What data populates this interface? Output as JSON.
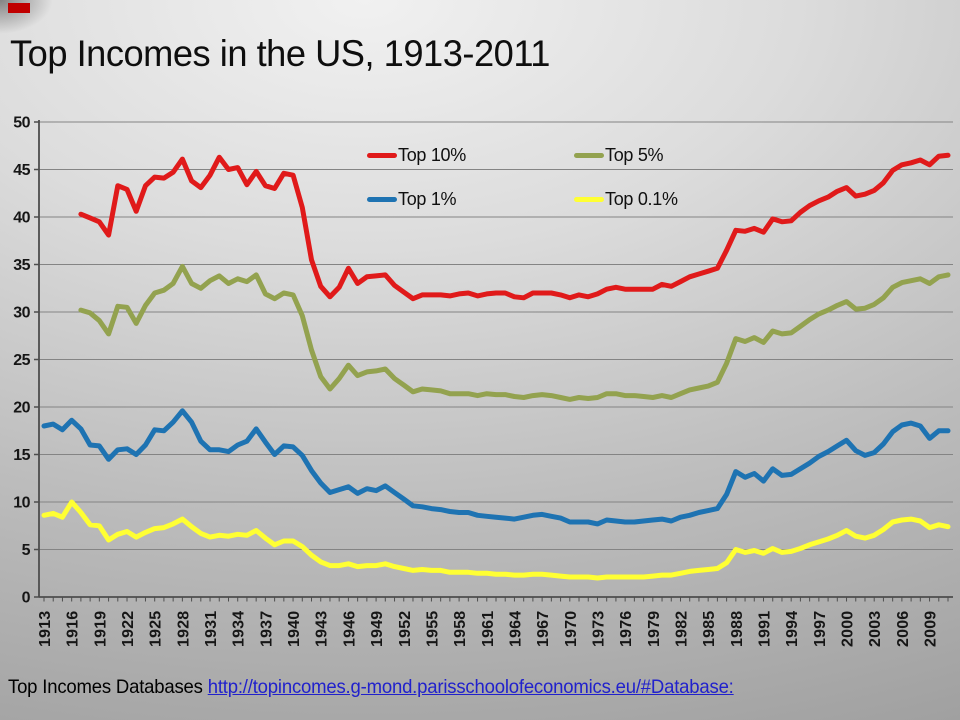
{
  "slide": {
    "title": "Top Incomes in the US, 1913-2011",
    "caption_prefix": "Top Incomes Databases ",
    "caption_link": "http://topincomes.g-mond.parisschoolofeconomics.eu/#Database:",
    "accent_color": "#C00000"
  },
  "axes": {
    "y_tick_labels": [
      "0",
      "5",
      "10",
      "15",
      "20",
      "25",
      "30",
      "35",
      "40",
      "45",
      "50"
    ],
    "x_first_label": "1913",
    "x_last_label": "2009"
  },
  "chart_data": {
    "type": "line",
    "title": "Top Incomes in the US, 1913-2011",
    "xlabel": "",
    "ylabel": "",
    "x_start": 1913,
    "x_end": 2011,
    "x_tick_step": 3,
    "ylim": [
      0,
      50
    ],
    "y_tick_step": 5,
    "grid": true,
    "legend_position": "top-center",
    "series": [
      {
        "name": "Top 10%",
        "color": "#E01A1A",
        "start_year": 1917,
        "values": [
          40.3,
          39.9,
          39.5,
          38.1,
          43.3,
          42.9,
          40.6,
          43.3,
          44.2,
          44.1,
          44.7,
          46.1,
          43.8,
          43.1,
          44.4,
          46.3,
          45.0,
          45.2,
          43.4,
          44.8,
          43.3,
          43.0,
          44.6,
          44.4,
          41.0,
          35.5,
          32.7,
          31.6,
          32.6,
          34.6,
          33.0,
          33.7,
          33.8,
          33.9,
          32.8,
          32.1,
          31.4,
          31.8,
          31.8,
          31.8,
          31.7,
          31.9,
          32.0,
          31.7,
          31.9,
          32.0,
          32.0,
          31.6,
          31.5,
          32.0,
          32.0,
          32.0,
          31.8,
          31.5,
          31.8,
          31.6,
          31.9,
          32.4,
          32.6,
          32.4,
          32.4,
          32.4,
          32.4,
          32.9,
          32.7,
          33.2,
          33.7,
          34.0,
          34.3,
          34.6,
          36.5,
          38.6,
          38.5,
          38.8,
          38.4,
          39.8,
          39.5,
          39.6,
          40.5,
          41.2,
          41.7,
          42.1,
          42.7,
          43.1,
          42.2,
          42.4,
          42.8,
          43.6,
          44.9,
          45.5,
          45.7,
          46.0,
          45.5,
          46.4,
          46.5
        ]
      },
      {
        "name": "Top 5%",
        "color": "#93A24F",
        "start_year": 1917,
        "values": [
          30.2,
          29.9,
          29.1,
          27.7,
          30.6,
          30.5,
          28.8,
          30.7,
          32.0,
          32.3,
          33.0,
          34.8,
          33.0,
          32.5,
          33.3,
          33.8,
          33.0,
          33.5,
          33.2,
          33.9,
          31.9,
          31.4,
          32.0,
          31.8,
          29.6,
          26.0,
          23.2,
          21.9,
          23.0,
          24.4,
          23.3,
          23.7,
          23.8,
          24.0,
          23.0,
          22.3,
          21.6,
          21.9,
          21.8,
          21.7,
          21.4,
          21.4,
          21.4,
          21.2,
          21.4,
          21.3,
          21.3,
          21.1,
          21.0,
          21.2,
          21.3,
          21.2,
          21.0,
          20.8,
          21.0,
          20.9,
          21.0,
          21.4,
          21.4,
          21.2,
          21.2,
          21.1,
          21.0,
          21.2,
          21.0,
          21.4,
          21.8,
          22.0,
          22.2,
          22.6,
          24.6,
          27.2,
          26.9,
          27.3,
          26.8,
          28.0,
          27.7,
          27.8,
          28.5,
          29.2,
          29.8,
          30.2,
          30.7,
          31.1,
          30.3,
          30.4,
          30.8,
          31.5,
          32.6,
          33.1,
          33.3,
          33.5,
          33.0,
          33.7,
          33.9
        ]
      },
      {
        "name": "Top 1%",
        "color": "#1E73B2",
        "start_year": 1913,
        "values": [
          18.0,
          18.2,
          17.6,
          18.6,
          17.7,
          16.0,
          15.9,
          14.5,
          15.5,
          15.6,
          15.0,
          16.0,
          17.6,
          17.5,
          18.4,
          19.6,
          18.4,
          16.4,
          15.5,
          15.5,
          15.3,
          16.0,
          16.4,
          17.7,
          16.3,
          15.0,
          15.9,
          15.8,
          14.9,
          13.3,
          12.0,
          11.0,
          11.3,
          11.6,
          10.9,
          11.4,
          11.2,
          11.7,
          11.0,
          10.3,
          9.6,
          9.5,
          9.3,
          9.2,
          9.0,
          8.9,
          8.9,
          8.6,
          8.5,
          8.4,
          8.3,
          8.2,
          8.4,
          8.6,
          8.7,
          8.5,
          8.3,
          7.9,
          7.9,
          7.9,
          7.7,
          8.1,
          8.0,
          7.9,
          7.9,
          8.0,
          8.1,
          8.2,
          8.0,
          8.4,
          8.6,
          8.9,
          9.1,
          9.3,
          10.8,
          13.2,
          12.6,
          13.0,
          12.2,
          13.5,
          12.8,
          12.9,
          13.5,
          14.1,
          14.8,
          15.3,
          15.9,
          16.5,
          15.4,
          14.9,
          15.2,
          16.1,
          17.4,
          18.1,
          18.3,
          18.0,
          16.7,
          17.5,
          17.5
        ]
      },
      {
        "name": "Top 0.1%",
        "color": "#FFFF33",
        "start_year": 1913,
        "values": [
          8.6,
          8.8,
          8.4,
          10.0,
          8.9,
          7.6,
          7.5,
          6.0,
          6.6,
          6.9,
          6.3,
          6.8,
          7.2,
          7.3,
          7.7,
          8.2,
          7.4,
          6.7,
          6.3,
          6.5,
          6.4,
          6.6,
          6.5,
          7.0,
          6.2,
          5.5,
          5.9,
          5.9,
          5.3,
          4.4,
          3.7,
          3.3,
          3.3,
          3.5,
          3.2,
          3.3,
          3.3,
          3.5,
          3.2,
          3.0,
          2.8,
          2.9,
          2.8,
          2.8,
          2.6,
          2.6,
          2.6,
          2.5,
          2.5,
          2.4,
          2.4,
          2.3,
          2.3,
          2.4,
          2.4,
          2.3,
          2.2,
          2.1,
          2.1,
          2.1,
          2.0,
          2.1,
          2.1,
          2.1,
          2.1,
          2.1,
          2.2,
          2.3,
          2.3,
          2.5,
          2.7,
          2.8,
          2.9,
          3.0,
          3.6,
          5.0,
          4.7,
          4.9,
          4.6,
          5.1,
          4.7,
          4.8,
          5.1,
          5.5,
          5.8,
          6.1,
          6.5,
          7.0,
          6.4,
          6.2,
          6.5,
          7.1,
          7.9,
          8.1,
          8.2,
          8.0,
          7.3,
          7.6,
          7.4
        ]
      }
    ]
  }
}
